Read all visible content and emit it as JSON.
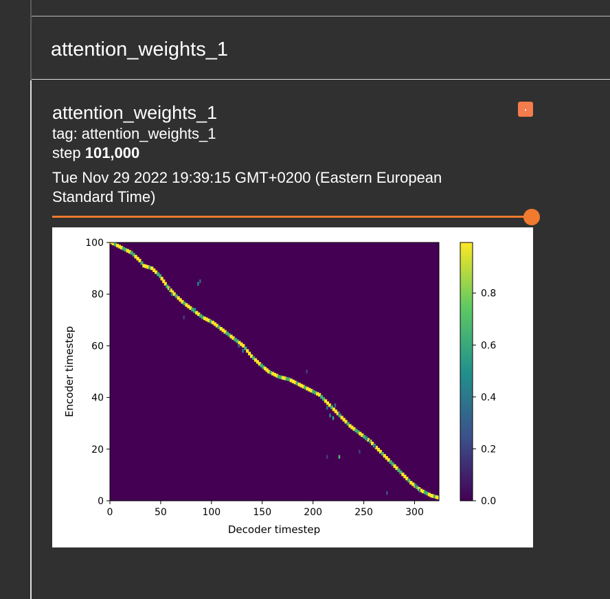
{
  "section": {
    "title": "attention_weights_1"
  },
  "card": {
    "run_title": "attention_weights_1",
    "tag_line": "tag: attention_weights_1",
    "step_label": "step",
    "step_value": "101,000",
    "date": "Tue Nov 29 2022 19:39:15 GMT+0200 (Eastern European Standard Time)",
    "swatch_color": "#f57c4c",
    "slider_color": "#f07a2e"
  },
  "chart_data": {
    "type": "heatmap",
    "xlabel": "Decoder timestep",
    "ylabel": "Encoder timestep",
    "xlim": [
      0,
      324
    ],
    "ylim": [
      0,
      100
    ],
    "xticks": [
      "0",
      "50",
      "100",
      "150",
      "200",
      "250",
      "300"
    ],
    "yticks": [
      "0",
      "20",
      "40",
      "60",
      "80",
      "100"
    ],
    "colorbar_ticks": [
      "0.0",
      "0.2",
      "0.4",
      "0.6",
      "0.8"
    ],
    "colormap": "viridis",
    "alignment_path": [
      {
        "x": 0,
        "y": 100
      },
      {
        "x": 10,
        "y": 98
      },
      {
        "x": 20,
        "y": 96
      },
      {
        "x": 28,
        "y": 93
      },
      {
        "x": 32,
        "y": 91
      },
      {
        "x": 40,
        "y": 90
      },
      {
        "x": 48,
        "y": 87
      },
      {
        "x": 55,
        "y": 83
      },
      {
        "x": 62,
        "y": 80
      },
      {
        "x": 70,
        "y": 77
      },
      {
        "x": 80,
        "y": 74
      },
      {
        "x": 90,
        "y": 71
      },
      {
        "x": 100,
        "y": 69
      },
      {
        "x": 110,
        "y": 66
      },
      {
        "x": 120,
        "y": 63
      },
      {
        "x": 130,
        "y": 60
      },
      {
        "x": 138,
        "y": 56
      },
      {
        "x": 146,
        "y": 53
      },
      {
        "x": 155,
        "y": 50
      },
      {
        "x": 165,
        "y": 48
      },
      {
        "x": 175,
        "y": 47
      },
      {
        "x": 185,
        "y": 45
      },
      {
        "x": 195,
        "y": 43
      },
      {
        "x": 205,
        "y": 41
      },
      {
        "x": 215,
        "y": 37
      },
      {
        "x": 225,
        "y": 33
      },
      {
        "x": 235,
        "y": 29
      },
      {
        "x": 245,
        "y": 26
      },
      {
        "x": 255,
        "y": 23
      },
      {
        "x": 265,
        "y": 19
      },
      {
        "x": 275,
        "y": 15
      },
      {
        "x": 285,
        "y": 11
      },
      {
        "x": 295,
        "y": 7
      },
      {
        "x": 305,
        "y": 4
      },
      {
        "x": 315,
        "y": 2
      },
      {
        "x": 324,
        "y": 1
      }
    ],
    "scatter_cells": [
      {
        "x": 86,
        "y": 84,
        "v": 0.5
      },
      {
        "x": 88,
        "y": 85,
        "v": 0.3
      },
      {
        "x": 58,
        "y": 82,
        "v": 0.4
      },
      {
        "x": 60,
        "y": 80,
        "v": 0.45
      },
      {
        "x": 72,
        "y": 71,
        "v": 0.2
      },
      {
        "x": 83,
        "y": 74,
        "v": 0.5
      },
      {
        "x": 126,
        "y": 60,
        "v": 0.3
      },
      {
        "x": 130,
        "y": 58,
        "v": 0.4
      },
      {
        "x": 193,
        "y": 50,
        "v": 0.2
      },
      {
        "x": 213,
        "y": 36,
        "v": 0.4
      },
      {
        "x": 216,
        "y": 33,
        "v": 0.5
      },
      {
        "x": 219,
        "y": 32,
        "v": 0.6
      },
      {
        "x": 221,
        "y": 37,
        "v": 0.35
      },
      {
        "x": 225,
        "y": 34,
        "v": 0.3
      },
      {
        "x": 225,
        "y": 17,
        "v": 0.7
      },
      {
        "x": 213,
        "y": 17,
        "v": 0.2
      },
      {
        "x": 252,
        "y": 24,
        "v": 0.5
      },
      {
        "x": 255,
        "y": 23,
        "v": 0.45
      },
      {
        "x": 260,
        "y": 21,
        "v": 0.3
      },
      {
        "x": 245,
        "y": 19,
        "v": 0.2
      },
      {
        "x": 272,
        "y": 3,
        "v": 0.25
      },
      {
        "x": 300,
        "y": 6,
        "v": 0.5
      },
      {
        "x": 304,
        "y": 4,
        "v": 0.45
      }
    ]
  }
}
